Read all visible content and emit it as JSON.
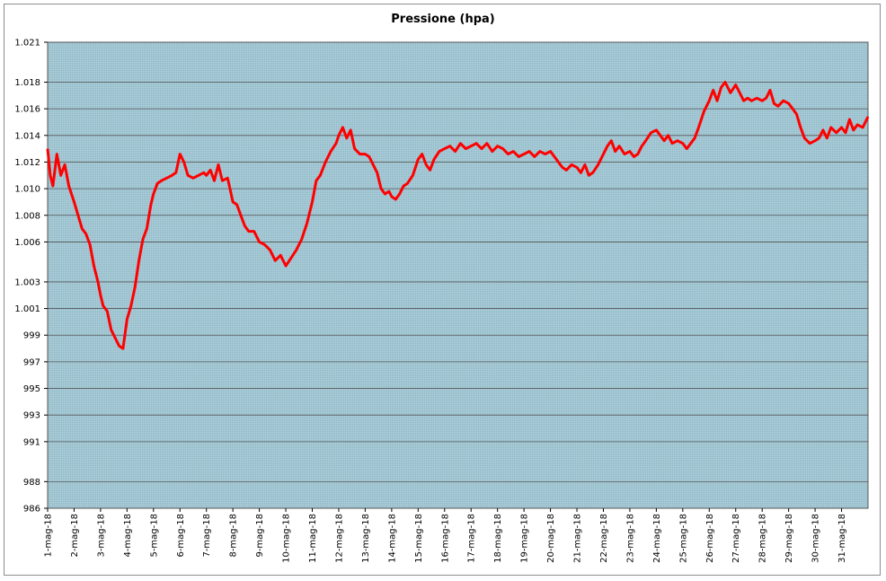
{
  "chart_data": {
    "type": "line",
    "title": "Pressione (hpa)",
    "xlabel": "",
    "ylabel": "",
    "ylim": [
      986,
      1021
    ],
    "yticks": [
      986,
      988,
      991,
      993,
      995,
      997,
      999,
      1001,
      1003,
      1006,
      1008,
      1010,
      1012,
      1014,
      1016,
      1018,
      1021
    ],
    "ytick_labels": [
      "986",
      "988",
      "991",
      "993",
      "995",
      "997",
      "999",
      "1.001",
      "1.003",
      "1.006",
      "1.008",
      "1.010",
      "1.012",
      "1.014",
      "1.016",
      "1.018",
      "1.021"
    ],
    "xlim": [
      0,
      31
    ],
    "categories": [
      "1-mag-18",
      "2-mag-18",
      "3-mag-18",
      "4-mag-18",
      "5-mag-18",
      "6-mag-18",
      "7-mag-18",
      "8-mag-18",
      "9-mag-18",
      "10-mag-18",
      "11-mag-18",
      "12-mag-18",
      "13-mag-18",
      "14-mag-18",
      "15-mag-18",
      "16-mag-18",
      "17-mag-18",
      "18-mag-18",
      "19-mag-18",
      "20-mag-18",
      "21-mag-18",
      "22-mag-18",
      "23-mag-18",
      "24-mag-18",
      "25-mag-18",
      "26-mag-18",
      "27-mag-18",
      "28-mag-18",
      "29-mag-18",
      "30-mag-18",
      "31-mag-18"
    ],
    "grid": true,
    "legend": "none",
    "colors": {
      "line": "#ff0000",
      "plot_bg": "#a6cad6",
      "grid": "#555555",
      "frame": "#8c8c8c"
    },
    "series": [
      {
        "values": [
          [
            0.0,
            1013.0
          ],
          [
            0.1,
            1011.0
          ],
          [
            0.2,
            1010.2
          ],
          [
            0.35,
            1012.6
          ],
          [
            0.5,
            1011.0
          ],
          [
            0.65,
            1011.8
          ],
          [
            0.8,
            1010.2
          ],
          [
            1.0,
            1009.0
          ],
          [
            1.15,
            1008.0
          ],
          [
            1.3,
            1007.0
          ],
          [
            1.45,
            1006.6
          ],
          [
            1.6,
            1005.8
          ],
          [
            1.75,
            1004.2
          ],
          [
            1.9,
            1003.0
          ],
          [
            2.0,
            1002.0
          ],
          [
            2.1,
            1001.2
          ],
          [
            2.25,
            1000.8
          ],
          [
            2.4,
            999.4
          ],
          [
            2.55,
            998.8
          ],
          [
            2.7,
            998.2
          ],
          [
            2.85,
            998.0
          ],
          [
            3.0,
            1000.2
          ],
          [
            3.15,
            1001.2
          ],
          [
            3.3,
            1002.6
          ],
          [
            3.45,
            1004.6
          ],
          [
            3.6,
            1006.2
          ],
          [
            3.75,
            1007.0
          ],
          [
            3.9,
            1008.8
          ],
          [
            4.0,
            1009.6
          ],
          [
            4.15,
            1010.4
          ],
          [
            4.3,
            1010.6
          ],
          [
            4.5,
            1010.8
          ],
          [
            4.7,
            1011.0
          ],
          [
            4.85,
            1011.2
          ],
          [
            5.0,
            1012.6
          ],
          [
            5.15,
            1012.0
          ],
          [
            5.3,
            1011.0
          ],
          [
            5.5,
            1010.8
          ],
          [
            5.7,
            1011.0
          ],
          [
            5.9,
            1011.2
          ],
          [
            6.0,
            1011.0
          ],
          [
            6.15,
            1011.4
          ],
          [
            6.3,
            1010.6
          ],
          [
            6.45,
            1011.8
          ],
          [
            6.6,
            1010.6
          ],
          [
            6.8,
            1010.8
          ],
          [
            7.0,
            1009.0
          ],
          [
            7.15,
            1008.8
          ],
          [
            7.3,
            1008.0
          ],
          [
            7.45,
            1007.2
          ],
          [
            7.6,
            1006.8
          ],
          [
            7.8,
            1006.8
          ],
          [
            8.0,
            1006.0
          ],
          [
            8.2,
            1005.8
          ],
          [
            8.4,
            1005.4
          ],
          [
            8.6,
            1004.6
          ],
          [
            8.8,
            1005.0
          ],
          [
            9.0,
            1004.2
          ],
          [
            9.2,
            1004.8
          ],
          [
            9.4,
            1005.4
          ],
          [
            9.6,
            1006.2
          ],
          [
            9.8,
            1007.4
          ],
          [
            10.0,
            1009.0
          ],
          [
            10.15,
            1010.6
          ],
          [
            10.3,
            1011.0
          ],
          [
            10.5,
            1012.0
          ],
          [
            10.7,
            1012.8
          ],
          [
            10.9,
            1013.4
          ],
          [
            11.0,
            1014.0
          ],
          [
            11.15,
            1014.6
          ],
          [
            11.3,
            1013.8
          ],
          [
            11.45,
            1014.4
          ],
          [
            11.6,
            1013.0
          ],
          [
            11.8,
            1012.6
          ],
          [
            12.0,
            1012.6
          ],
          [
            12.15,
            1012.4
          ],
          [
            12.3,
            1011.8
          ],
          [
            12.45,
            1011.2
          ],
          [
            12.6,
            1010.0
          ],
          [
            12.75,
            1009.6
          ],
          [
            12.9,
            1009.8
          ],
          [
            13.0,
            1009.4
          ],
          [
            13.15,
            1009.2
          ],
          [
            13.3,
            1009.6
          ],
          [
            13.45,
            1010.2
          ],
          [
            13.6,
            1010.4
          ],
          [
            13.8,
            1011.0
          ],
          [
            14.0,
            1012.2
          ],
          [
            14.15,
            1012.6
          ],
          [
            14.3,
            1011.8
          ],
          [
            14.45,
            1011.4
          ],
          [
            14.6,
            1012.2
          ],
          [
            14.8,
            1012.8
          ],
          [
            15.0,
            1013.0
          ],
          [
            15.2,
            1013.2
          ],
          [
            15.4,
            1012.8
          ],
          [
            15.6,
            1013.4
          ],
          [
            15.8,
            1013.0
          ],
          [
            16.0,
            1013.2
          ],
          [
            16.2,
            1013.4
          ],
          [
            16.4,
            1013.0
          ],
          [
            16.6,
            1013.4
          ],
          [
            16.8,
            1012.8
          ],
          [
            17.0,
            1013.2
          ],
          [
            17.2,
            1013.0
          ],
          [
            17.4,
            1012.6
          ],
          [
            17.6,
            1012.8
          ],
          [
            17.8,
            1012.4
          ],
          [
            18.0,
            1012.6
          ],
          [
            18.2,
            1012.8
          ],
          [
            18.4,
            1012.4
          ],
          [
            18.6,
            1012.8
          ],
          [
            18.8,
            1012.6
          ],
          [
            19.0,
            1012.8
          ],
          [
            19.15,
            1012.4
          ],
          [
            19.3,
            1012.0
          ],
          [
            19.45,
            1011.6
          ],
          [
            19.6,
            1011.4
          ],
          [
            19.8,
            1011.8
          ],
          [
            20.0,
            1011.6
          ],
          [
            20.15,
            1011.2
          ],
          [
            20.3,
            1011.8
          ],
          [
            20.45,
            1011.0
          ],
          [
            20.6,
            1011.2
          ],
          [
            20.8,
            1011.8
          ],
          [
            21.0,
            1012.6
          ],
          [
            21.15,
            1013.2
          ],
          [
            21.3,
            1013.6
          ],
          [
            21.45,
            1012.8
          ],
          [
            21.6,
            1013.2
          ],
          [
            21.8,
            1012.6
          ],
          [
            22.0,
            1012.8
          ],
          [
            22.15,
            1012.4
          ],
          [
            22.3,
            1012.6
          ],
          [
            22.45,
            1013.2
          ],
          [
            22.6,
            1013.6
          ],
          [
            22.8,
            1014.2
          ],
          [
            23.0,
            1014.4
          ],
          [
            23.15,
            1014.0
          ],
          [
            23.3,
            1013.6
          ],
          [
            23.45,
            1014.0
          ],
          [
            23.6,
            1013.4
          ],
          [
            23.8,
            1013.6
          ],
          [
            24.0,
            1013.4
          ],
          [
            24.15,
            1013.0
          ],
          [
            24.3,
            1013.4
          ],
          [
            24.45,
            1013.8
          ],
          [
            24.6,
            1014.6
          ],
          [
            24.8,
            1015.8
          ],
          [
            25.0,
            1016.6
          ],
          [
            25.15,
            1017.4
          ],
          [
            25.3,
            1016.6
          ],
          [
            25.45,
            1017.6
          ],
          [
            25.6,
            1018.0
          ],
          [
            25.8,
            1017.2
          ],
          [
            26.0,
            1017.8
          ],
          [
            26.15,
            1017.2
          ],
          [
            26.3,
            1016.6
          ],
          [
            26.45,
            1016.8
          ],
          [
            26.6,
            1016.6
          ],
          [
            26.8,
            1016.8
          ],
          [
            27.0,
            1016.6
          ],
          [
            27.15,
            1016.8
          ],
          [
            27.3,
            1017.4
          ],
          [
            27.45,
            1016.4
          ],
          [
            27.6,
            1016.2
          ],
          [
            27.8,
            1016.6
          ],
          [
            28.0,
            1016.4
          ],
          [
            28.15,
            1016.0
          ],
          [
            28.3,
            1015.6
          ],
          [
            28.45,
            1014.6
          ],
          [
            28.6,
            1013.8
          ],
          [
            28.8,
            1013.4
          ],
          [
            29.0,
            1013.6
          ],
          [
            29.15,
            1013.8
          ],
          [
            29.3,
            1014.4
          ],
          [
            29.45,
            1013.8
          ],
          [
            29.6,
            1014.6
          ],
          [
            29.8,
            1014.2
          ],
          [
            30.0,
            1014.6
          ],
          [
            30.15,
            1014.2
          ],
          [
            30.3,
            1015.2
          ],
          [
            30.45,
            1014.4
          ],
          [
            30.6,
            1014.8
          ],
          [
            30.8,
            1014.6
          ],
          [
            31.0,
            1015.4
          ]
        ]
      }
    ]
  }
}
